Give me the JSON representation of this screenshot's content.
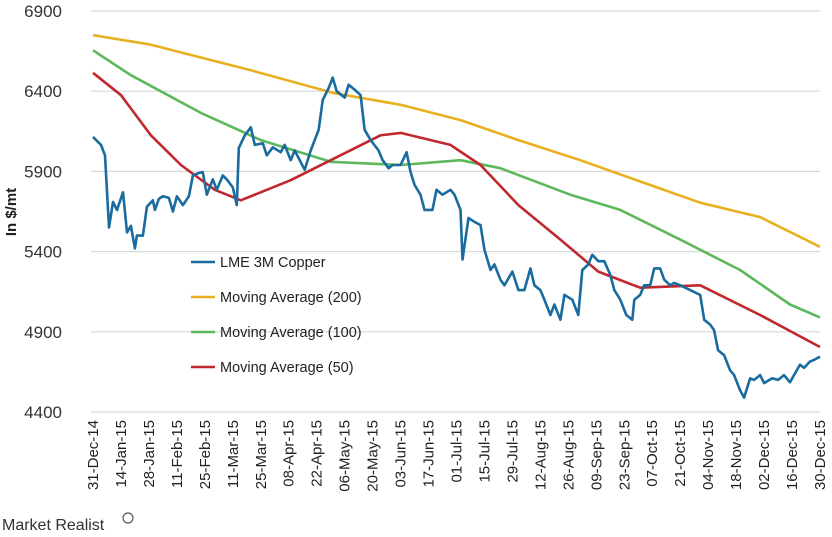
{
  "chart_data": {
    "type": "line",
    "title": "",
    "xlabel": "",
    "ylabel": "In $/mt",
    "ylim": [
      4400,
      6900
    ],
    "yticks": [
      4400,
      4900,
      5400,
      5900,
      6400,
      6900
    ],
    "xlim": [
      "2014-12-31",
      "2015-12-30"
    ],
    "xticks": [
      "31-Dec-14",
      "14-Jan-15",
      "28-Jan-15",
      "11-Feb-15",
      "25-Feb-15",
      "11-Mar-15",
      "25-Mar-15",
      "08-Apr-15",
      "22-Apr-15",
      "06-May-15",
      "20-May-15",
      "03-Jun-15",
      "17-Jun-15",
      "01-Jul-15",
      "15-Jul-15",
      "29-Jul-15",
      "12-Aug-15",
      "26-Aug-15",
      "09-Sep-15",
      "23-Sep-15",
      "07-Oct-15",
      "21-Oct-15",
      "04-Nov-15",
      "18-Nov-15",
      "02-Dec-15",
      "16-Dec-15",
      "30-Dec-15"
    ],
    "grid": "horizontal",
    "legend_position": "center-left",
    "series": [
      {
        "name": "LME 3M Copper",
        "color": "#1a6b9e",
        "points": [
          [
            "2014-12-31",
            6115
          ],
          [
            "2015-01-04",
            6065
          ],
          [
            "2015-01-06",
            6000
          ],
          [
            "2015-01-08",
            5550
          ],
          [
            "2015-01-10",
            5710
          ],
          [
            "2015-01-12",
            5660
          ],
          [
            "2015-01-15",
            5770
          ],
          [
            "2015-01-17",
            5520
          ],
          [
            "2015-01-19",
            5560
          ],
          [
            "2015-01-21",
            5420
          ],
          [
            "2015-01-22",
            5500
          ],
          [
            "2015-01-25",
            5500
          ],
          [
            "2015-01-27",
            5680
          ],
          [
            "2015-01-30",
            5720
          ],
          [
            "2015-01-31",
            5660
          ],
          [
            "2015-02-02",
            5730
          ],
          [
            "2015-02-04",
            5745
          ],
          [
            "2015-02-07",
            5735
          ],
          [
            "2015-02-09",
            5650
          ],
          [
            "2015-02-11",
            5745
          ],
          [
            "2015-02-14",
            5690
          ],
          [
            "2015-02-17",
            5745
          ],
          [
            "2015-02-19",
            5875
          ],
          [
            "2015-02-22",
            5890
          ],
          [
            "2015-02-24",
            5895
          ],
          [
            "2015-02-26",
            5755
          ],
          [
            "2015-03-01",
            5850
          ],
          [
            "2015-03-03",
            5785
          ],
          [
            "2015-03-06",
            5875
          ],
          [
            "2015-03-08",
            5850
          ],
          [
            "2015-03-11",
            5800
          ],
          [
            "2015-03-13",
            5690
          ],
          [
            "2015-03-14",
            6045
          ],
          [
            "2015-03-17",
            6125
          ],
          [
            "2015-03-20",
            6175
          ],
          [
            "2015-03-22",
            6065
          ],
          [
            "2015-03-26",
            6075
          ],
          [
            "2015-03-28",
            6000
          ],
          [
            "2015-03-31",
            6050
          ],
          [
            "2015-04-04",
            6020
          ],
          [
            "2015-04-06",
            6065
          ],
          [
            "2015-04-09",
            5970
          ],
          [
            "2015-04-11",
            6030
          ],
          [
            "2015-04-16",
            5910
          ],
          [
            "2015-04-19",
            6030
          ],
          [
            "2015-04-23",
            6160
          ],
          [
            "2015-04-25",
            6345
          ],
          [
            "2015-04-28",
            6420
          ],
          [
            "2015-04-30",
            6485
          ],
          [
            "2015-05-02",
            6400
          ],
          [
            "2015-05-06",
            6360
          ],
          [
            "2015-05-08",
            6440
          ],
          [
            "2015-05-11",
            6410
          ],
          [
            "2015-05-14",
            6375
          ],
          [
            "2015-05-16",
            6160
          ],
          [
            "2015-05-19",
            6095
          ],
          [
            "2015-05-23",
            6030
          ],
          [
            "2015-05-25",
            5970
          ],
          [
            "2015-05-28",
            5920
          ],
          [
            "2015-05-30",
            5940
          ],
          [
            "2015-06-03",
            5940
          ],
          [
            "2015-06-06",
            6020
          ],
          [
            "2015-06-08",
            5895
          ],
          [
            "2015-06-10",
            5815
          ],
          [
            "2015-06-13",
            5755
          ],
          [
            "2015-06-15",
            5660
          ],
          [
            "2015-06-19",
            5660
          ],
          [
            "2015-06-21",
            5785
          ],
          [
            "2015-06-24",
            5755
          ],
          [
            "2015-06-28",
            5785
          ],
          [
            "2015-06-30",
            5755
          ],
          [
            "2015-07-03",
            5660
          ],
          [
            "2015-07-04",
            5350
          ],
          [
            "2015-07-07",
            5610
          ],
          [
            "2015-07-10",
            5585
          ],
          [
            "2015-07-13",
            5565
          ],
          [
            "2015-07-15",
            5410
          ],
          [
            "2015-07-18",
            5285
          ],
          [
            "2015-07-20",
            5320
          ],
          [
            "2015-07-23",
            5225
          ],
          [
            "2015-07-25",
            5190
          ],
          [
            "2015-07-29",
            5275
          ],
          [
            "2015-08-01",
            5160
          ],
          [
            "2015-08-04",
            5160
          ],
          [
            "2015-08-07",
            5295
          ],
          [
            "2015-08-09",
            5190
          ],
          [
            "2015-08-12",
            5160
          ],
          [
            "2015-08-14",
            5100
          ],
          [
            "2015-08-17",
            5005
          ],
          [
            "2015-08-19",
            5070
          ],
          [
            "2015-08-22",
            4975
          ],
          [
            "2015-08-24",
            5130
          ],
          [
            "2015-08-28",
            5100
          ],
          [
            "2015-08-31",
            5005
          ],
          [
            "2015-09-02",
            5285
          ],
          [
            "2015-09-05",
            5320
          ],
          [
            "2015-09-07",
            5380
          ],
          [
            "2015-09-10",
            5340
          ],
          [
            "2015-09-13",
            5340
          ],
          [
            "2015-09-16",
            5255
          ],
          [
            "2015-09-18",
            5160
          ],
          [
            "2015-09-21",
            5100
          ],
          [
            "2015-09-24",
            5005
          ],
          [
            "2015-09-27",
            4975
          ],
          [
            "2015-09-28",
            5100
          ],
          [
            "2015-10-01",
            5130
          ],
          [
            "2015-10-03",
            5190
          ],
          [
            "2015-10-06",
            5190
          ],
          [
            "2015-10-08",
            5295
          ],
          [
            "2015-10-11",
            5295
          ],
          [
            "2015-10-13",
            5225
          ],
          [
            "2015-10-16",
            5190
          ],
          [
            "2015-10-18",
            5205
          ],
          [
            "2015-10-21",
            5190
          ],
          [
            "2015-10-26",
            5160
          ],
          [
            "2015-10-31",
            5130
          ],
          [
            "2015-11-02",
            4975
          ],
          [
            "2015-11-05",
            4945
          ],
          [
            "2015-11-07",
            4910
          ],
          [
            "2015-11-09",
            4785
          ],
          [
            "2015-11-12",
            4755
          ],
          [
            "2015-11-15",
            4660
          ],
          [
            "2015-11-17",
            4630
          ],
          [
            "2015-11-20",
            4535
          ],
          [
            "2015-11-22",
            4490
          ],
          [
            "2015-11-25",
            4610
          ],
          [
            "2015-11-27",
            4600
          ],
          [
            "2015-11-30",
            4630
          ],
          [
            "2015-12-02",
            4580
          ],
          [
            "2015-12-06",
            4610
          ],
          [
            "2015-12-09",
            4600
          ],
          [
            "2015-12-12",
            4630
          ],
          [
            "2015-12-15",
            4585
          ],
          [
            "2015-12-17",
            4630
          ],
          [
            "2015-12-20",
            4695
          ],
          [
            "2015-12-22",
            4675
          ],
          [
            "2015-12-25",
            4715
          ],
          [
            "2015-12-27",
            4725
          ],
          [
            "2015-12-30",
            4745
          ]
        ]
      },
      {
        "name": "Moving Average (200)",
        "color": "#e8b020",
        "points": [
          [
            "2014-12-31",
            6750
          ],
          [
            "2015-01-29",
            6690
          ],
          [
            "2015-03-20",
            6530
          ],
          [
            "2015-04-30",
            6390
          ],
          [
            "2015-06-03",
            6315
          ],
          [
            "2015-07-03",
            6220
          ],
          [
            "2015-08-01",
            6095
          ],
          [
            "2015-09-01",
            5970
          ],
          [
            "2015-10-06",
            5815
          ],
          [
            "2015-10-31",
            5705
          ],
          [
            "2015-11-30",
            5615
          ],
          [
            "2015-12-30",
            5430
          ]
        ]
      },
      {
        "name": "Moving Average (100)",
        "color": "#5cb85c",
        "points": [
          [
            "2014-12-31",
            6655
          ],
          [
            "2015-01-19",
            6500
          ],
          [
            "2015-02-23",
            6265
          ],
          [
            "2015-03-25",
            6095
          ],
          [
            "2015-04-29",
            5960
          ],
          [
            "2015-06-03",
            5940
          ],
          [
            "2015-07-03",
            5970
          ],
          [
            "2015-07-23",
            5920
          ],
          [
            "2015-08-27",
            5755
          ],
          [
            "2015-09-21",
            5660
          ],
          [
            "2015-10-21",
            5475
          ],
          [
            "2015-11-20",
            5285
          ],
          [
            "2015-12-15",
            5070
          ],
          [
            "2015-12-30",
            4990
          ]
        ]
      },
      {
        "name": "Moving Average (50)",
        "color": "#c0282d",
        "points": [
          [
            "2014-12-31",
            6515
          ],
          [
            "2015-01-14",
            6375
          ],
          [
            "2015-01-29",
            6125
          ],
          [
            "2015-02-13",
            5940
          ],
          [
            "2015-03-02",
            5785
          ],
          [
            "2015-03-15",
            5720
          ],
          [
            "2015-04-09",
            5845
          ],
          [
            "2015-04-29",
            5970
          ],
          [
            "2015-05-24",
            6125
          ],
          [
            "2015-06-03",
            6140
          ],
          [
            "2015-06-28",
            6065
          ],
          [
            "2015-07-13",
            5940
          ],
          [
            "2015-08-01",
            5690
          ],
          [
            "2015-08-22",
            5475
          ],
          [
            "2015-09-10",
            5275
          ],
          [
            "2015-10-01",
            5175
          ],
          [
            "2015-10-31",
            5190
          ],
          [
            "2015-11-30",
            5005
          ],
          [
            "2015-12-30",
            4805
          ]
        ]
      }
    ]
  },
  "branding": {
    "logo_text": "Market Realist"
  }
}
